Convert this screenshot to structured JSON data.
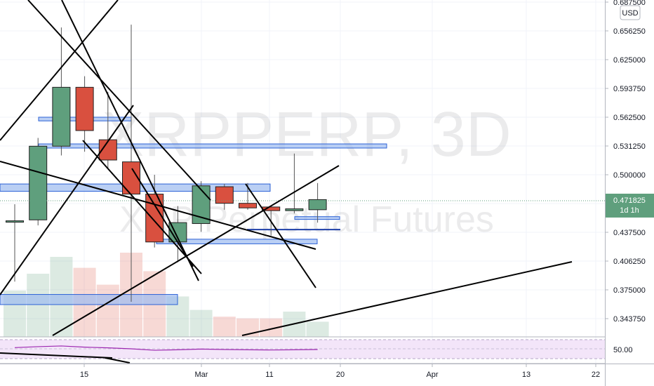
{
  "chart_data": {
    "type": "candlestick",
    "watermark": {
      "symbol": "XRPPERP, 3D",
      "description": "XRP Perpetual Futures"
    },
    "currency": "USD",
    "last_price": {
      "value": "0.471825",
      "value_num": 0.471825,
      "interval": "1d 1h"
    },
    "y_ticks": [
      "0.687500",
      "0.656250",
      "0.625000",
      "0.593750",
      "0.562500",
      "0.531250",
      "0.500000",
      "0.468750",
      "0.437500",
      "0.406250",
      "0.375000",
      "0.343750"
    ],
    "x_ticks": [
      "15",
      "Mar",
      "11",
      "20",
      "Apr",
      "13",
      "22"
    ],
    "ylim": [
      0.328,
      0.6875
    ],
    "candles": [
      {
        "o": 0.45,
        "h": 0.468,
        "l": 0.384,
        "c": 0.45
      },
      {
        "o": 0.451,
        "h": 0.54,
        "l": 0.445,
        "c": 0.531
      },
      {
        "o": 0.531,
        "h": 0.66,
        "l": 0.521,
        "c": 0.595
      },
      {
        "o": 0.595,
        "h": 0.607,
        "l": 0.525,
        "c": 0.548
      },
      {
        "o": 0.538,
        "h": 0.59,
        "l": 0.507,
        "c": 0.516
      },
      {
        "o": 0.514,
        "h": 0.663,
        "l": 0.362,
        "c": 0.479
      },
      {
        "o": 0.479,
        "h": 0.5,
        "l": 0.421,
        "c": 0.427
      },
      {
        "o": 0.427,
        "h": 0.466,
        "l": 0.405,
        "c": 0.448
      },
      {
        "o": 0.447,
        "h": 0.493,
        "l": 0.438,
        "c": 0.488
      },
      {
        "o": 0.487,
        "h": 0.49,
        "l": 0.462,
        "c": 0.469
      },
      {
        "o": 0.469,
        "h": 0.491,
        "l": 0.462,
        "c": 0.464
      },
      {
        "o": 0.465,
        "h": 0.466,
        "l": 0.434,
        "c": 0.461
      },
      {
        "o": 0.461,
        "h": 0.523,
        "l": 0.458,
        "c": 0.463
      },
      {
        "o": 0.462,
        "h": 0.491,
        "l": 0.448,
        "c": 0.473
      }
    ],
    "volume": [
      0.55,
      0.75,
      0.95,
      0.82,
      0.62,
      1.0,
      0.78,
      0.48,
      0.32,
      0.24,
      0.22,
      0.22,
      0.3,
      0.18
    ],
    "rsi": {
      "level_label": "50.00",
      "values": [
        50.5,
        50.9,
        51.2,
        50.7,
        50.4,
        50.0,
        49.4,
        49.6,
        49.9,
        49.7,
        49.6,
        49.5,
        49.6,
        49.7
      ]
    },
    "colors": {
      "up": "#5f9f7d",
      "down": "#d9503f",
      "zone_fill": "#9cbbf0",
      "zone_stroke": "#2c62d6",
      "rsi": "#9c27b0",
      "rsi_band": "#f3e5f9",
      "drawing": "#000000"
    }
  }
}
